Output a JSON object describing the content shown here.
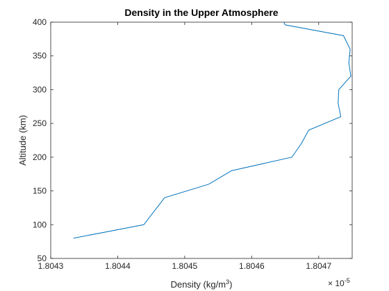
{
  "chart_data": {
    "type": "line",
    "title": "Density in the Upper Atmosphere",
    "xlabel": "Density (kg/m",
    "xlabel_sup": "3",
    "xlabel_end": ")",
    "ylabel": "Altitude (km)",
    "x_exponent_base": "× 10",
    "x_exponent_power": "-5",
    "xlim": [
      1.8043,
      1.80475
    ],
    "ylim": [
      50,
      400
    ],
    "x_ticks": [
      1.8043,
      1.8044,
      1.8045,
      1.8046,
      1.8047
    ],
    "x_tick_labels": [
      "1.8043",
      "1.8044",
      "1.8045",
      "1.8046",
      "1.8047"
    ],
    "y_ticks": [
      50,
      100,
      150,
      200,
      250,
      300,
      350,
      400
    ],
    "y_tick_labels": [
      "50",
      "100",
      "150",
      "200",
      "250",
      "300",
      "350",
      "400"
    ],
    "grid": false,
    "line_color": "#0072BD",
    "series": [
      {
        "x": [
          1.804334,
          1.804439,
          1.80447,
          1.804536,
          1.80457,
          1.80466,
          1.804674,
          1.804685,
          1.804733,
          1.804729,
          1.80473,
          1.804748,
          1.804745,
          1.804747,
          1.804737,
          1.80465,
          1.804648
        ],
        "y": [
          80,
          100,
          140,
          160,
          180,
          200,
          220,
          240,
          260,
          280,
          300,
          320,
          340,
          360,
          380,
          396,
          400
        ]
      }
    ]
  }
}
